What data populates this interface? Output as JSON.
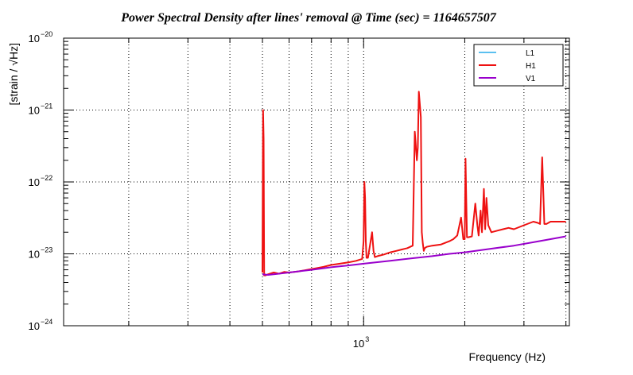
{
  "chart_data": {
    "type": "line",
    "title": "Power Spectral Density after lines' removal @ Time (sec) = 1164657507",
    "xlabel": "Frequency (Hz)",
    "ylabel": "[strain / √Hz]",
    "xscale": "log",
    "yscale": "log",
    "xlim": [
      128,
      4096
    ],
    "ylim": [
      1e-24,
      1e-20
    ],
    "grid": true,
    "legend_position": "top-right",
    "x_tick_labels": [
      {
        "value": 1000,
        "base": "10",
        "exp": "3"
      }
    ],
    "y_tick_labels": [
      {
        "value": 1e-20,
        "base": "10",
        "exp": "−20"
      },
      {
        "value": 1e-21,
        "base": "10",
        "exp": "−21"
      },
      {
        "value": 1e-22,
        "base": "10",
        "exp": "−22"
      },
      {
        "value": 1e-23,
        "base": "10",
        "exp": "−23"
      },
      {
        "value": 1e-24,
        "base": "10",
        "exp": "−24"
      }
    ],
    "series": [
      {
        "name": "L1",
        "color": "#5bc0f0",
        "x": [],
        "y": []
      },
      {
        "name": "H1",
        "color": "#ee1111",
        "x": [
          500,
          502,
          504,
          506,
          508,
          510,
          520,
          540,
          560,
          580,
          600,
          640,
          680,
          720,
          760,
          800,
          850,
          900,
          950,
          990,
          1000,
          1005,
          1010,
          1015,
          1020,
          1030,
          1060,
          1070,
          1080,
          1100,
          1150,
          1200,
          1250,
          1300,
          1350,
          1400,
          1420,
          1440,
          1450,
          1460,
          1480,
          1490,
          1500,
          1510,
          1520,
          1540,
          1600,
          1700,
          1800,
          1850,
          1900,
          1950,
          1980,
          2000,
          2010,
          2030,
          2050,
          2100,
          2150,
          2180,
          2200,
          2230,
          2250,
          2280,
          2300,
          2320,
          2350,
          2400,
          2500,
          2600,
          2700,
          2800,
          3000,
          3200,
          3300,
          3350,
          3400,
          3450,
          3500,
          3600,
          3800,
          4000
        ],
        "y": [
          5.5e-24,
          1e-21,
          4e-22,
          5e-24,
          5.2e-24,
          5e-24,
          5.2e-24,
          5.5e-24,
          5.3e-24,
          5.6e-24,
          5.5e-24,
          5.7e-24,
          6e-24,
          6.3e-24,
          6.6e-24,
          7e-24,
          7.3e-24,
          7.6e-24,
          8e-24,
          8.5e-24,
          1.5e-23,
          1e-22,
          6e-23,
          1.5e-23,
          8.8e-24,
          8.8e-24,
          2e-23,
          1.1e-23,
          9e-24,
          9.3e-24,
          9.8e-24,
          1.05e-23,
          1.1e-23,
          1.15e-23,
          1.2e-23,
          1.3e-23,
          5e-22,
          2e-22,
          3e-22,
          1.8e-21,
          8e-22,
          2e-23,
          1.4e-23,
          1.1e-23,
          1.2e-23,
          1.25e-23,
          1.3e-23,
          1.35e-23,
          1.5e-23,
          1.6e-23,
          1.8e-23,
          3.2e-23,
          1.6e-23,
          1.6e-23,
          2.1e-22,
          1.7e-23,
          1.7e-23,
          1.75e-23,
          5e-23,
          2.5e-23,
          1.8e-23,
          4e-23,
          2e-23,
          8e-23,
          2.2e-23,
          6e-23,
          2.5e-23,
          2e-23,
          2.1e-23,
          2.2e-23,
          2.3e-23,
          2.2e-23,
          2.5e-23,
          2.8e-23,
          2.7e-23,
          2.6e-23,
          2.2e-22,
          2.6e-23,
          2.6e-23,
          2.8e-23,
          2.8e-23,
          2.8e-23
        ]
      },
      {
        "name": "V1",
        "color": "#9900cc",
        "x": [
          500,
          520,
          560,
          600,
          700,
          800,
          900,
          1000,
          1200,
          1400,
          1600,
          1800,
          2000,
          2400,
          2800,
          3200,
          3600,
          4000
        ],
        "y": [
          5.2e-24,
          5.1e-24,
          5.3e-24,
          5.5e-24,
          6e-24,
          6.5e-24,
          6.9e-24,
          7.3e-24,
          8e-24,
          8.7e-24,
          9.3e-24,
          1e-23,
          1.05e-23,
          1.18e-23,
          1.3e-23,
          1.45e-23,
          1.6e-23,
          1.75e-23
        ]
      }
    ]
  }
}
